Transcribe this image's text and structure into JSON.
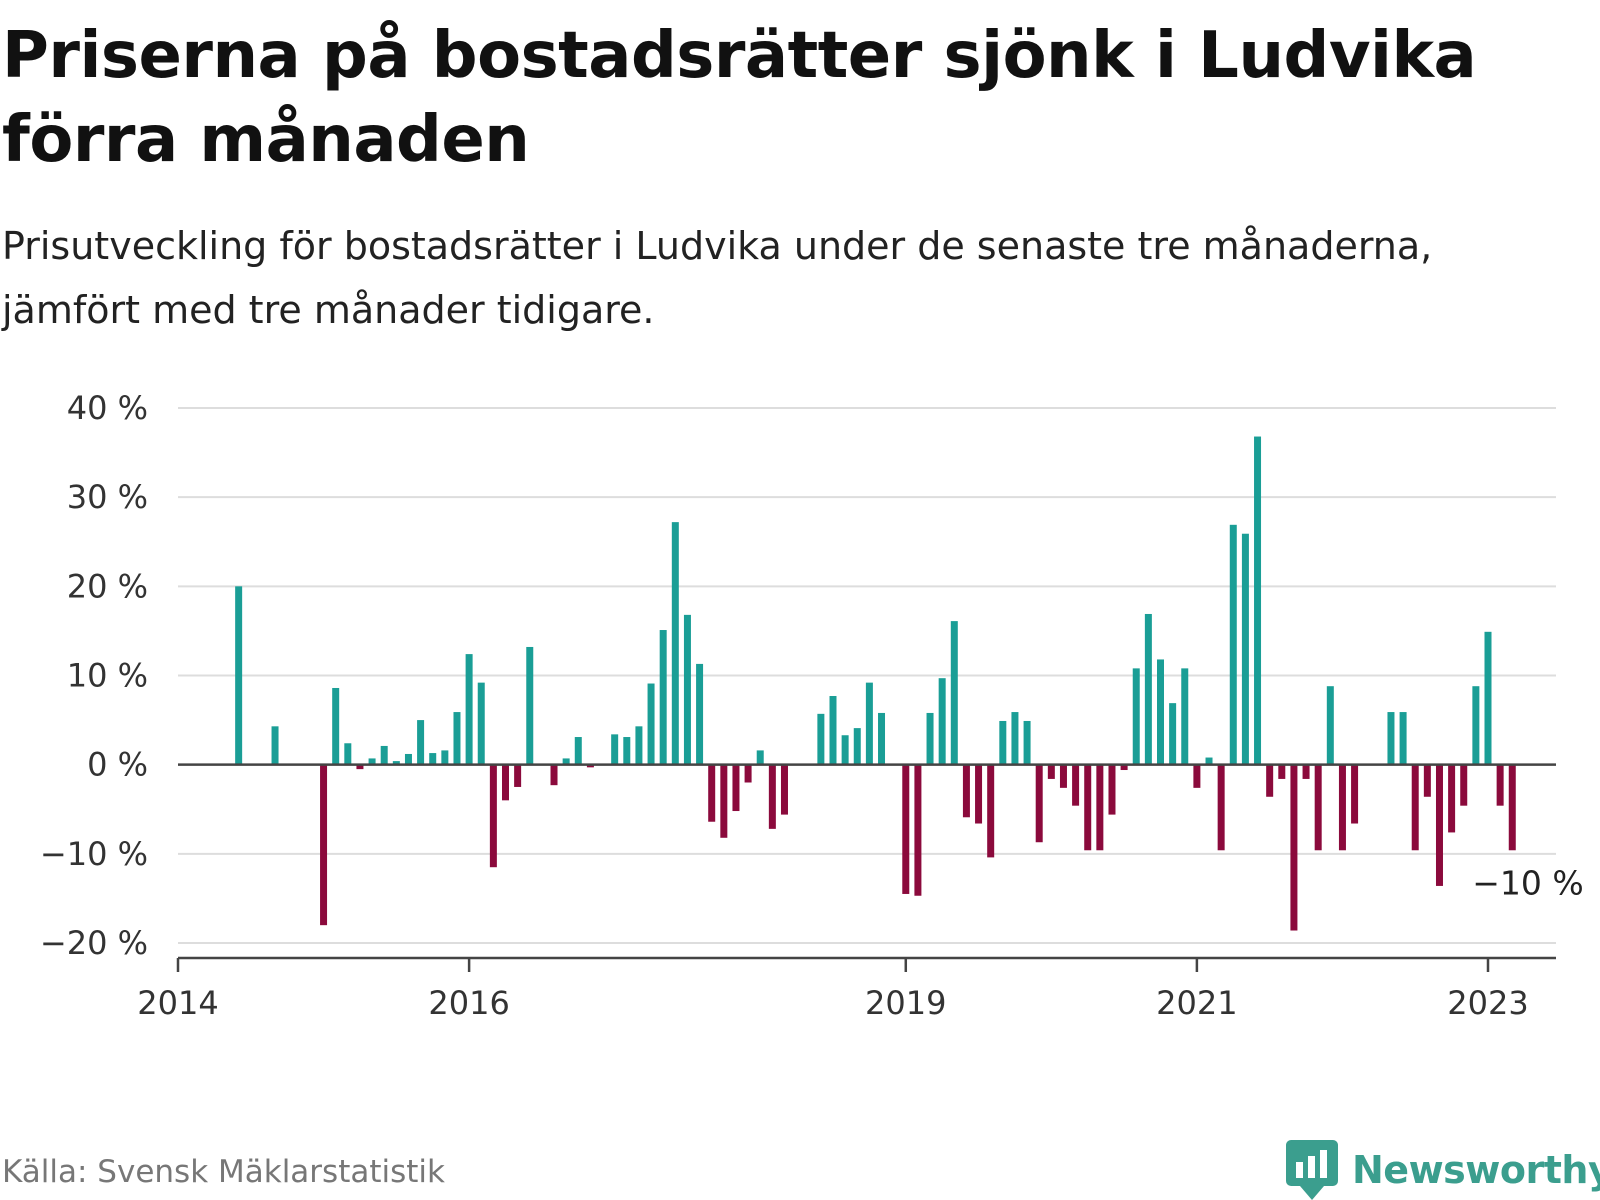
{
  "title": "Priserna på bostadsrätter sjönk i Ludvika förra månaden",
  "subtitle": "Prisutveckling för bostadsrätter i Ludvika under de senaste tre månaderna, jämfört med tre månader tidigare.",
  "source": "Källa: Svensk Mäklarstatistik",
  "logo_text": "Newsworthy",
  "colors": {
    "positive": "#1a9e96",
    "negative": "#8b0a3c",
    "grid": "#dddddd",
    "axis": "#444444",
    "brand": "#3b9e8e"
  },
  "chart_data": {
    "type": "bar",
    "y_unit": "%",
    "ylim": [
      -20,
      40
    ],
    "y_ticks": [
      40,
      30,
      20,
      10,
      0,
      -10,
      -20
    ],
    "y_tick_labels": [
      "40 %",
      "30 %",
      "20 %",
      "10 %",
      "0 %",
      "−10 %",
      "−20 %"
    ],
    "x_ticks": [
      {
        "date": "2014-01",
        "label": "2014"
      },
      {
        "date": "2016-01",
        "label": "2016"
      },
      {
        "date": "2019-01",
        "label": "2019"
      },
      {
        "date": "2021-01",
        "label": "2021"
      },
      {
        "date": "2023-01",
        "label": "2023"
      }
    ],
    "x_range": [
      "2014-01",
      "2023-06"
    ],
    "grid": true,
    "bars": [
      {
        "date": "2014-06",
        "value": 20
      },
      {
        "date": "2014-09",
        "value": 4.3
      },
      {
        "date": "2015-01",
        "value": -18
      },
      {
        "date": "2015-02",
        "value": 8.6
      },
      {
        "date": "2015-03",
        "value": 2.4
      },
      {
        "date": "2015-04",
        "value": -0.5
      },
      {
        "date": "2015-05",
        "value": 0.7
      },
      {
        "date": "2015-06",
        "value": 2.1
      },
      {
        "date": "2015-07",
        "value": 0.4
      },
      {
        "date": "2015-08",
        "value": 1.2
      },
      {
        "date": "2015-09",
        "value": 5.0
      },
      {
        "date": "2015-10",
        "value": 1.3
      },
      {
        "date": "2015-11",
        "value": 1.6
      },
      {
        "date": "2015-12",
        "value": 5.9
      },
      {
        "date": "2016-01",
        "value": 12.4
      },
      {
        "date": "2016-02",
        "value": 9.2
      },
      {
        "date": "2016-03",
        "value": -11.5
      },
      {
        "date": "2016-04",
        "value": -4.0
      },
      {
        "date": "2016-05",
        "value": -2.5
      },
      {
        "date": "2016-06",
        "value": 13.2
      },
      {
        "date": "2016-08",
        "value": -2.3
      },
      {
        "date": "2016-09",
        "value": 0.7
      },
      {
        "date": "2016-10",
        "value": 3.1
      },
      {
        "date": "2016-11",
        "value": -0.3
      },
      {
        "date": "2017-01",
        "value": 3.4
      },
      {
        "date": "2017-02",
        "value": 3.1
      },
      {
        "date": "2017-03",
        "value": 4.3
      },
      {
        "date": "2017-04",
        "value": 9.1
      },
      {
        "date": "2017-05",
        "value": 15.1
      },
      {
        "date": "2017-06",
        "value": 27.2
      },
      {
        "date": "2017-07",
        "value": 16.8
      },
      {
        "date": "2017-08",
        "value": 11.3
      },
      {
        "date": "2017-09",
        "value": -6.4
      },
      {
        "date": "2017-10",
        "value": -8.2
      },
      {
        "date": "2017-11",
        "value": -5.2
      },
      {
        "date": "2017-12",
        "value": -2.0
      },
      {
        "date": "2018-01",
        "value": 1.6
      },
      {
        "date": "2018-02",
        "value": -7.2
      },
      {
        "date": "2018-03",
        "value": -5.6
      },
      {
        "date": "2018-06",
        "value": 5.7
      },
      {
        "date": "2018-07",
        "value": 7.7
      },
      {
        "date": "2018-08",
        "value": 3.3
      },
      {
        "date": "2018-09",
        "value": 4.1
      },
      {
        "date": "2018-10",
        "value": 9.2
      },
      {
        "date": "2018-11",
        "value": 5.8
      },
      {
        "date": "2019-01",
        "value": -14.5
      },
      {
        "date": "2019-02",
        "value": -14.7
      },
      {
        "date": "2019-03",
        "value": 5.8
      },
      {
        "date": "2019-04",
        "value": 9.7
      },
      {
        "date": "2019-05",
        "value": 16.1
      },
      {
        "date": "2019-06",
        "value": -5.9
      },
      {
        "date": "2019-07",
        "value": -6.6
      },
      {
        "date": "2019-08",
        "value": -10.4
      },
      {
        "date": "2019-09",
        "value": 4.9
      },
      {
        "date": "2019-10",
        "value": 5.9
      },
      {
        "date": "2019-11",
        "value": 4.9
      },
      {
        "date": "2019-12",
        "value": -8.7
      },
      {
        "date": "2020-01",
        "value": -1.6
      },
      {
        "date": "2020-02",
        "value": -2.6
      },
      {
        "date": "2020-03",
        "value": -4.6
      },
      {
        "date": "2020-04",
        "value": -9.6
      },
      {
        "date": "2020-05",
        "value": -9.6
      },
      {
        "date": "2020-06",
        "value": -5.6
      },
      {
        "date": "2020-07",
        "value": -0.6
      },
      {
        "date": "2020-08",
        "value": 10.8
      },
      {
        "date": "2020-09",
        "value": 16.9
      },
      {
        "date": "2020-10",
        "value": 11.8
      },
      {
        "date": "2020-11",
        "value": 6.9
      },
      {
        "date": "2020-12",
        "value": 10.8
      },
      {
        "date": "2021-01",
        "value": -2.6
      },
      {
        "date": "2021-02",
        "value": 0.8
      },
      {
        "date": "2021-03",
        "value": -9.6
      },
      {
        "date": "2021-04",
        "value": 26.9
      },
      {
        "date": "2021-05",
        "value": 25.9
      },
      {
        "date": "2021-06",
        "value": 36.8
      },
      {
        "date": "2021-07",
        "value": -3.6
      },
      {
        "date": "2021-08",
        "value": -1.6
      },
      {
        "date": "2021-09",
        "value": -18.6
      },
      {
        "date": "2021-10",
        "value": -1.6
      },
      {
        "date": "2021-11",
        "value": -9.6
      },
      {
        "date": "2021-12",
        "value": 8.8
      },
      {
        "date": "2022-01",
        "value": -9.6
      },
      {
        "date": "2022-02",
        "value": -6.6
      },
      {
        "date": "2022-05",
        "value": 5.9
      },
      {
        "date": "2022-06",
        "value": 5.9
      },
      {
        "date": "2022-07",
        "value": -9.6
      },
      {
        "date": "2022-08",
        "value": -3.6
      },
      {
        "date": "2022-09",
        "value": -13.6
      },
      {
        "date": "2022-10",
        "value": -7.6
      },
      {
        "date": "2022-11",
        "value": -4.6
      },
      {
        "date": "2022-12",
        "value": 8.8
      },
      {
        "date": "2023-01",
        "value": 14.9
      },
      {
        "date": "2023-02",
        "value": -4.6
      },
      {
        "date": "2023-03",
        "value": -9.6
      }
    ],
    "last_value_label": "−10 %"
  }
}
